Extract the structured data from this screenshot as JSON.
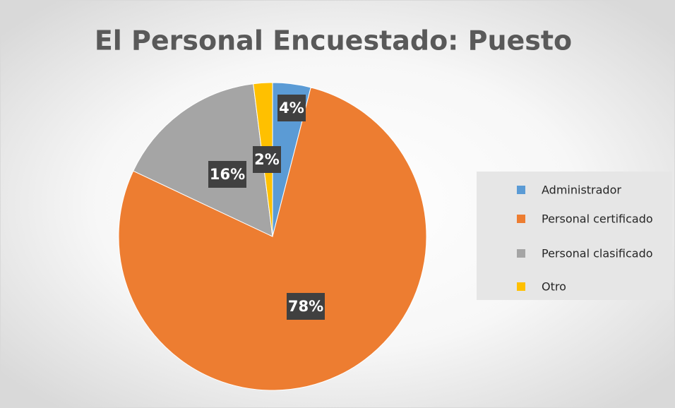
{
  "chart_data": {
    "type": "pie",
    "title": "El Personal Encuestado: Puesto",
    "categories": [
      "Administrador",
      "Personal certificado",
      "Personal clasificado",
      "Otro"
    ],
    "values": [
      4,
      78,
      16,
      2
    ],
    "value_labels": [
      "4%",
      "78%",
      "16%",
      "2%"
    ],
    "colors": [
      "#5b9bd5",
      "#ed7d31",
      "#a5a5a5",
      "#ffc000"
    ],
    "legend": "right"
  }
}
